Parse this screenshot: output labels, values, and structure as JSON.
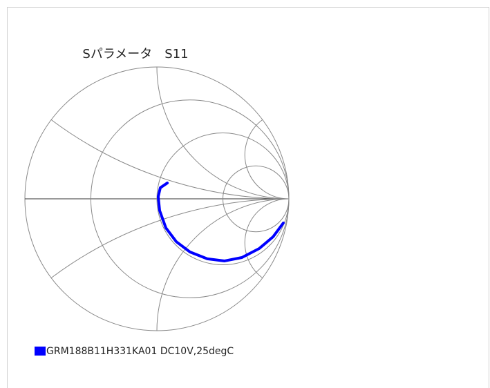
{
  "chart_data": {
    "type": "smith",
    "title": "Sパラメータ　S11",
    "grid": true,
    "grid_r": [
      0.333,
      1,
      3
    ],
    "grid_x": [
      0.333,
      1,
      3
    ],
    "series": [
      {
        "name": "GRM188B11H331KA01 DC10V,25degC",
        "color": "#0000ff",
        "x": [
          0.079,
          0.026,
          0.01,
          0.021,
          0.068,
          0.147,
          0.251,
          0.382,
          0.513,
          0.644,
          0.775,
          0.88,
          0.958
        ],
        "values": [
          0.12,
          0.084,
          0.016,
          -0.089,
          -0.22,
          -0.325,
          -0.403,
          -0.455,
          -0.471,
          -0.445,
          -0.377,
          -0.288,
          -0.183
        ]
      }
    ]
  }
}
